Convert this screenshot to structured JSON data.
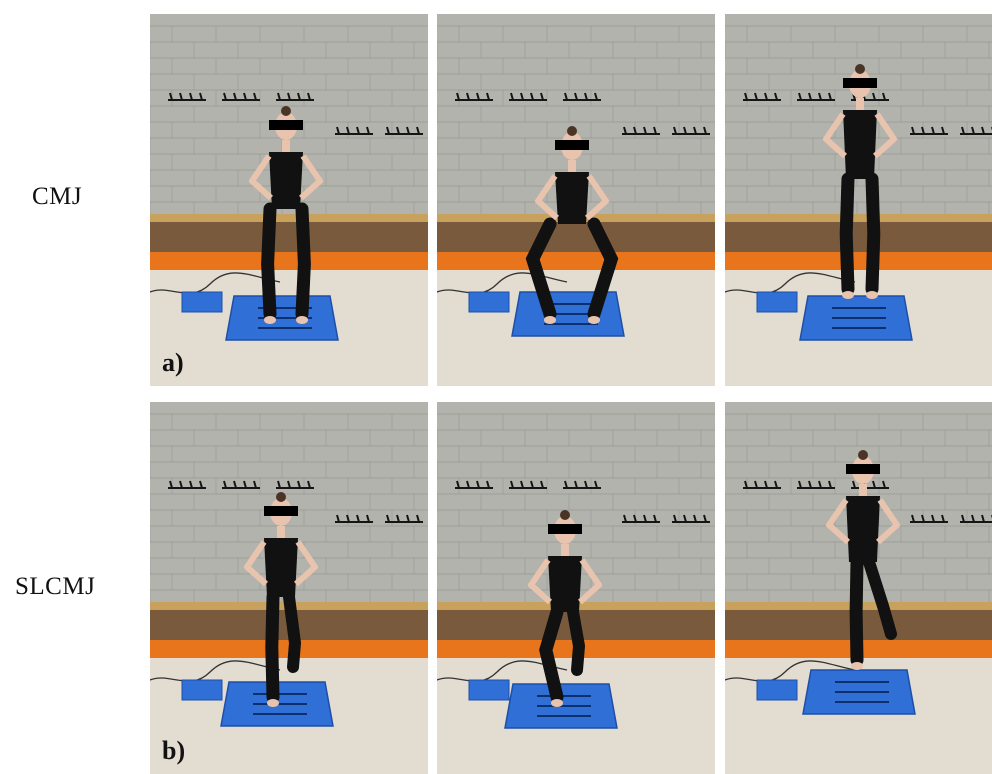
{
  "labels": {
    "row1": "CMJ",
    "row2": "SLCMJ",
    "panel_a": "a)",
    "panel_b": "b)"
  },
  "colors": {
    "wall": "#b3b3ae",
    "wall_dark": "#8f8f8a",
    "bench": "#7a5a3c",
    "bench_top": "#c8a15c",
    "orange": "#e8741c",
    "floor": "#e3ddd1",
    "plate": "#2f6fd6",
    "plate_edge": "#1e4fa8",
    "outfit": "#111111",
    "skin": "#e8c4ae"
  },
  "panels": [
    {
      "pose": "stand"
    },
    {
      "pose": "squat"
    },
    {
      "pose": "toes"
    },
    {
      "pose": "single-stand"
    },
    {
      "pose": "single-squat"
    },
    {
      "pose": "single-jump"
    }
  ]
}
